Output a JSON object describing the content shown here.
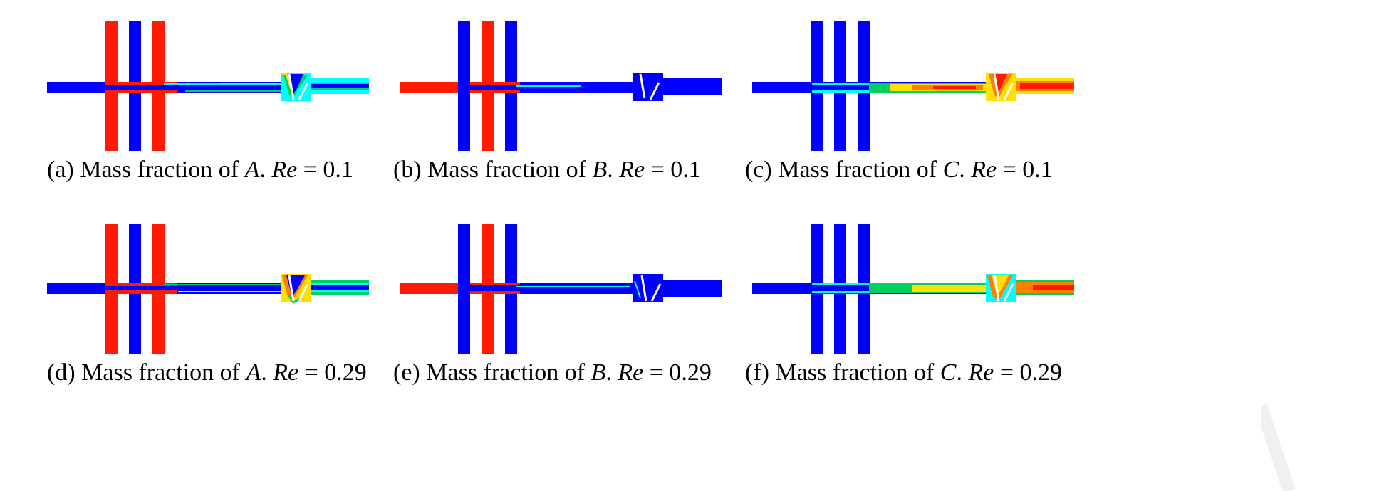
{
  "figure": {
    "panels": [
      {
        "id": "a",
        "label": "(a)",
        "text": "Mass fraction of",
        "species": "A",
        "re_symbol": "Re",
        "re_value": "= 0.1"
      },
      {
        "id": "b",
        "label": "(b)",
        "text": "Mass fraction of",
        "species": "B",
        "re_symbol": "Re",
        "re_value": "= 0.1"
      },
      {
        "id": "c",
        "label": "(c)",
        "text": "Mass fraction of",
        "species": "C",
        "re_symbol": "Re",
        "re_value": "= 0.1"
      },
      {
        "id": "d",
        "label": "(d)",
        "text": "Mass fraction of",
        "species": "A",
        "re_symbol": "Re",
        "re_value": "= 0.29"
      },
      {
        "id": "e",
        "label": "(e)",
        "text": "Mass fraction of",
        "species": "B",
        "re_symbol": "Re",
        "re_value": "= 0.29"
      },
      {
        "id": "f",
        "label": "(f)",
        "text": "Mass fraction of",
        "species": "C",
        "re_symbol": "Re",
        "re_value": "= 0.29"
      }
    ]
  },
  "colors": {
    "red": "#ff1a00",
    "blue": "#0000ff",
    "green": "#00d060",
    "yellow": "#ffe000",
    "orange": "#ff8000",
    "cyan": "#00ffff"
  }
}
